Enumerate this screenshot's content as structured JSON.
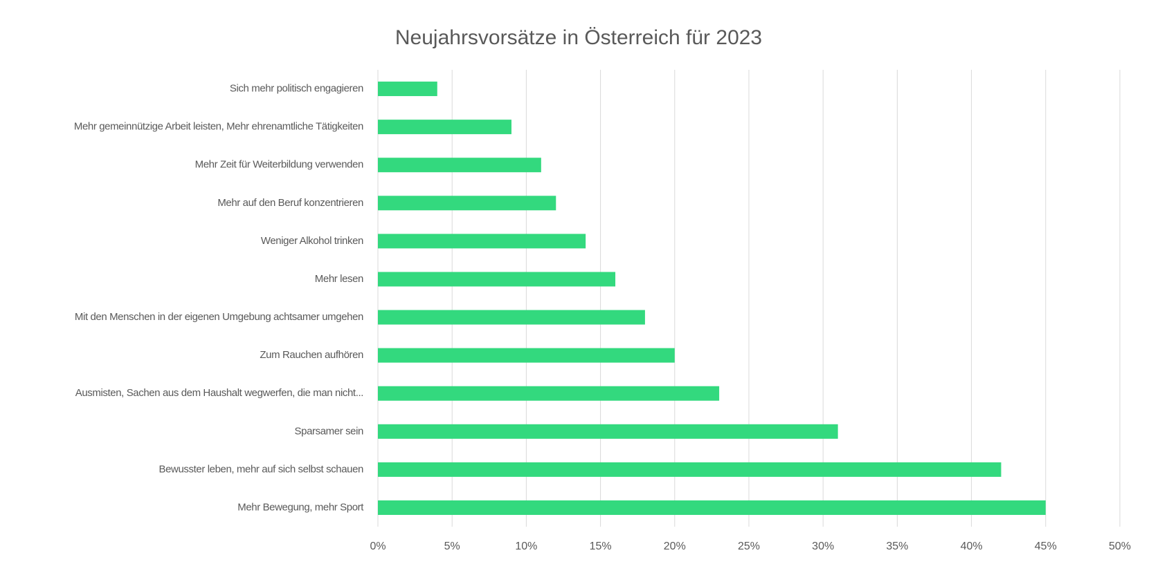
{
  "chart_data": {
    "type": "barh",
    "title": "Neujahrsvorsätze in Österreich für 2023",
    "categories": [
      "Sich mehr politisch engagieren",
      "Mehr gemeinnützige Arbeit leisten, Mehr ehrenamtliche Tätigkeiten",
      "Mehr Zeit für Weiterbildung verwenden",
      "Mehr auf den Beruf konzentrieren",
      "Weniger Alkohol trinken",
      "Mehr lesen",
      "Mit den Menschen in der eigenen Umgebung achtsamer umgehen",
      "Zum Rauchen aufhören",
      "Ausmisten, Sachen aus dem Haushalt wegwerfen, die man nicht...",
      "Sparsamer sein",
      "Bewusster leben, mehr auf sich selbst schauen",
      "Mehr Bewegung, mehr Sport"
    ],
    "values": [
      4,
      9,
      11,
      12,
      14,
      16,
      18,
      20,
      23,
      31,
      42,
      45
    ],
    "color": "#33d97e",
    "xlim": [
      0,
      50
    ],
    "xticks": [
      {
        "value": 0,
        "label": "0%"
      },
      {
        "value": 5,
        "label": "5%"
      },
      {
        "value": 10,
        "label": "10%"
      },
      {
        "value": 15,
        "label": "15%"
      },
      {
        "value": 20,
        "label": "20%"
      },
      {
        "value": 25,
        "label": "25%"
      },
      {
        "value": 30,
        "label": "30%"
      },
      {
        "value": 35,
        "label": "35%"
      },
      {
        "value": 40,
        "label": "40%"
      },
      {
        "value": 45,
        "label": "45%"
      },
      {
        "value": 50,
        "label": "50%"
      }
    ],
    "grid": true
  }
}
